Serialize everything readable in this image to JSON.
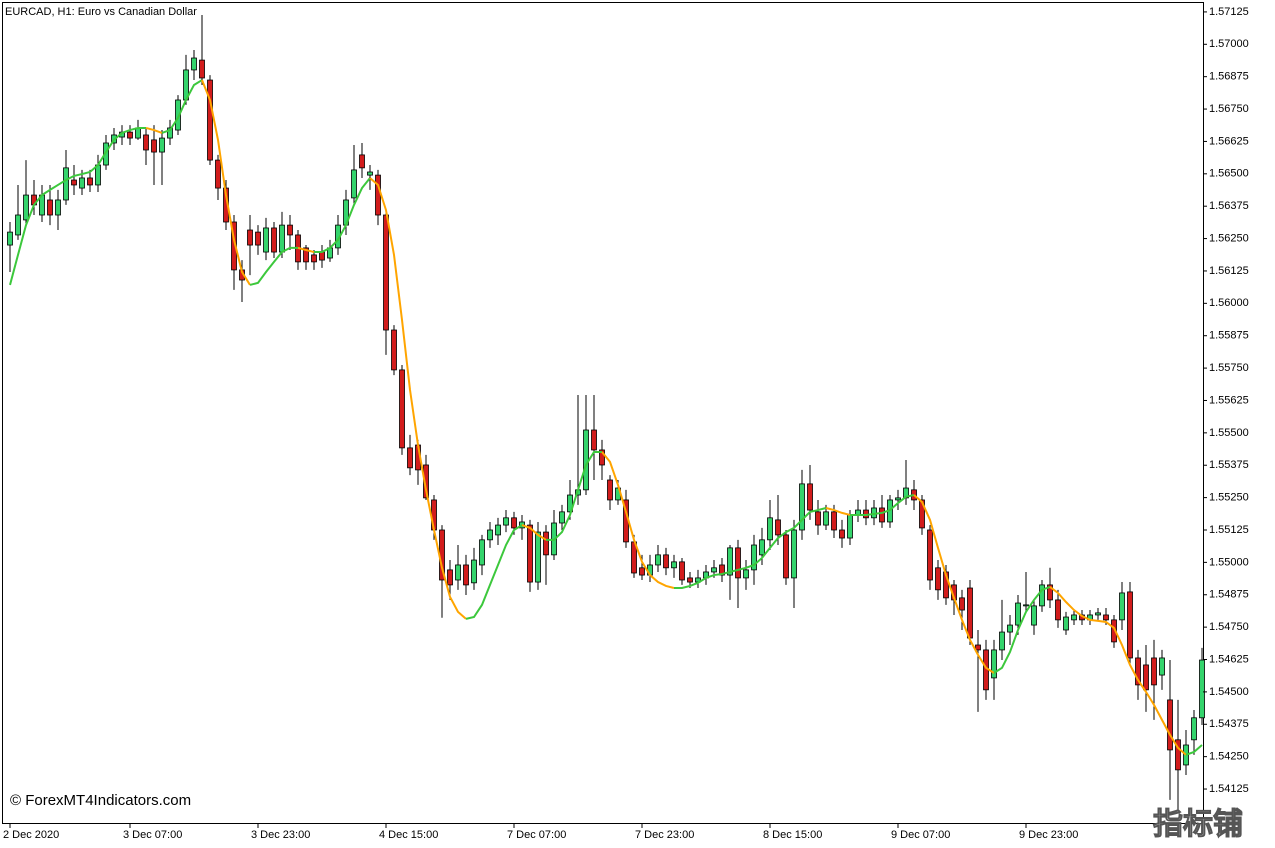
{
  "chart_data": {
    "type": "candlestick",
    "title": "EURCAD, H1:  Euro vs Canadian Dollar",
    "watermark": "© ForexMT4Indicators.com",
    "logo": "指标铺",
    "up_color": "#34d46c",
    "down_color": "#d21c1c",
    "ylim": [
      1.5399,
      1.57171
    ],
    "yticks": [
      1.57125,
      {
        "value": 1.57,
        "label": "1.57000"
      },
      1.56875,
      {
        "value": 1.5675,
        "label": "1.56750"
      },
      1.56625,
      {
        "value": 1.565,
        "label": "1.56500"
      },
      1.56375,
      {
        "value": 1.5625,
        "label": "1.56250"
      },
      1.56125,
      {
        "value": 1.56,
        "label": "1.56000"
      },
      1.55875,
      {
        "value": 1.5575,
        "label": "1.55750"
      },
      1.55625,
      {
        "value": 1.555,
        "label": "1.55500"
      },
      1.55375,
      {
        "value": 1.5525,
        "label": "1.55250"
      },
      1.55125,
      {
        "value": 1.55,
        "label": "1.55000"
      },
      1.54875,
      {
        "value": 1.5475,
        "label": "1.54750"
      },
      1.54625,
      {
        "value": 1.545,
        "label": "1.54500"
      },
      1.54375,
      {
        "value": 1.5425,
        "label": "1.54250"
      },
      1.54125
    ],
    "categories": [
      "2 Dec 2020",
      null,
      null,
      null,
      null,
      null,
      null,
      null,
      null,
      null,
      null,
      null,
      null,
      null,
      null,
      "3 Dec 07:00",
      null,
      null,
      null,
      null,
      null,
      null,
      null,
      null,
      null,
      null,
      null,
      null,
      null,
      null,
      null,
      "3 Dec 23:00",
      null,
      null,
      null,
      null,
      null,
      null,
      null,
      null,
      null,
      null,
      null,
      null,
      null,
      null,
      null,
      "4 Dec 15:00",
      null,
      null,
      null,
      null,
      null,
      null,
      null,
      null,
      null,
      null,
      null,
      null,
      null,
      null,
      null,
      "7 Dec 07:00",
      null,
      null,
      null,
      null,
      null,
      null,
      null,
      null,
      null,
      null,
      null,
      null,
      null,
      null,
      null,
      "7 Dec 23:00",
      null,
      null,
      null,
      null,
      null,
      null,
      null,
      null,
      null,
      null,
      null,
      null,
      null,
      null,
      null,
      "8 Dec 15:00",
      null,
      null,
      null,
      null,
      null,
      null,
      null,
      null,
      null,
      null,
      null,
      null,
      null,
      null,
      null,
      "9 Dec 07:00",
      null,
      null,
      null,
      null,
      null,
      null,
      null,
      null,
      null,
      null,
      null,
      null,
      null,
      null,
      null,
      "9 Dec 23:00",
      null,
      null,
      null,
      null,
      null,
      null,
      null,
      null,
      null,
      null,
      null,
      null,
      null,
      null,
      null,
      null,
      null,
      null,
      null,
      null,
      null,
      null
    ],
    "open": [
      1.56225,
      1.56264,
      1.56322,
      1.56418,
      1.56341,
      1.56399,
      1.56341,
      1.56399,
      1.56476,
      1.56445,
      1.56484,
      1.56457,
      1.56534,
      1.56619,
      1.56642,
      1.56661,
      1.56638,
      1.5665,
      1.56631,
      1.56584,
      1.56638,
      1.56669,
      1.56785,
      1.56901,
      1.56939,
      1.56862,
      1.56553,
      1.56445,
      1.56314,
      1.56129,
      1.56283,
      1.56275,
      1.56198,
      1.56291,
      1.56198,
      1.56302,
      1.56264,
      1.56214,
      1.56187,
      1.56198,
      1.56175,
      1.56214,
      1.56302,
      1.56407,
      1.56573,
      1.56495,
      1.56495,
      1.56341,
      1.55897,
      1.55743,
      1.55442,
      1.55453,
      1.55376,
      1.55241,
      1.55125,
      1.54971,
      1.54932,
      1.5499,
      1.54921,
      1.5499,
      1.55087,
      1.55106,
      1.55144,
      1.55172,
      1.55133,
      1.55144,
      1.54924,
      1.55117,
      1.55029,
      1.55152,
      1.55195,
      1.5526,
      1.5528,
      1.55511,
      1.55434,
      1.55318,
      1.55241,
      1.55241,
      1.55079,
      1.54979,
      1.54951,
      1.5499,
      1.55029,
      1.54979,
      1.55002,
      1.5494,
      1.54924,
      1.5494,
      1.54963,
      1.5499,
      1.54951,
      1.55056,
      1.5494,
      1.54971,
      1.55029,
      1.55087,
      1.55164,
      1.55106,
      1.5494,
      1.55125,
      1.55303,
      1.55195,
      1.55144,
      1.55195,
      1.55125,
      1.55094,
      1.55183,
      1.55202,
      1.55172,
      1.5521,
      1.55156,
      1.55241,
      1.55249,
      1.5528,
      1.55241,
      1.55125,
      1.54979,
      1.54963,
      1.54913,
      1.54863,
      1.54901,
      1.54681,
      1.54662,
      1.54554,
      1.54662,
      1.54731,
      1.54758,
      1.54832,
      1.54758,
      1.54832,
      1.54913,
      1.54855,
      1.54739,
      1.54778,
      1.54797,
      1.54778,
      1.54797,
      1.54797,
      1.54778,
      1.54778,
      1.54886,
      1.54631,
      1.54604,
      1.54631,
      1.54565,
      1.54469,
      1.54315,
      1.54218,
      1.54315,
      1.544
    ],
    "high": [
      1.56314,
      1.56457,
      1.56553,
      1.56476,
      1.56457,
      1.56457,
      1.56438,
      1.56592,
      1.56534,
      1.56515,
      1.56515,
      1.56573,
      1.5665,
      1.56677,
      1.56688,
      1.56688,
      1.56708,
      1.56677,
      1.56688,
      1.56669,
      1.56708,
      1.56804,
      1.56959,
      1.56978,
      1.57113,
      1.56881,
      1.56573,
      1.56476,
      1.56341,
      1.56167,
      1.56341,
      1.56302,
      1.5633,
      1.56314,
      1.56353,
      1.56341,
      1.56283,
      1.56225,
      1.56206,
      1.56225,
      1.56245,
      1.56341,
      1.56438,
      1.56611,
      1.56619,
      1.56534,
      1.56515,
      1.5636,
      1.55916,
      1.55762,
      1.55492,
      1.55473,
      1.55415,
      1.5526,
      1.55144,
      1.55009,
      1.55067,
      1.55029,
      1.55056,
      1.55106,
      1.55156,
      1.55172,
      1.55202,
      1.55195,
      1.55183,
      1.55164,
      1.55156,
      1.55144,
      1.55202,
      1.55222,
      1.55318,
      1.55646,
      1.55646,
      1.55646,
      1.55473,
      1.55337,
      1.55318,
      1.5528,
      1.55106,
      1.55029,
      1.55029,
      1.55067,
      1.55056,
      1.55029,
      1.55017,
      1.54963,
      1.54971,
      1.5499,
      1.55009,
      1.55017,
      1.55067,
      1.55087,
      1.55009,
      1.55106,
      1.55133,
      1.55241,
      1.5526,
      1.55125,
      1.55164,
      1.55357,
      1.55376,
      1.55241,
      1.55222,
      1.55222,
      1.55164,
      1.55202,
      1.55241,
      1.55241,
      1.55241,
      1.5526,
      1.5526,
      1.5528,
      1.55395,
      1.55318,
      1.5526,
      1.55144,
      1.55009,
      1.5499,
      1.54932,
      1.54894,
      1.54932,
      1.54739,
      1.54701,
      1.54701,
      1.54855,
      1.54797,
      1.54874,
      1.54963,
      1.54855,
      1.54932,
      1.54979,
      1.54894,
      1.54809,
      1.54816,
      1.54816,
      1.54816,
      1.54824,
      1.54824,
      1.54797,
      1.54924,
      1.54924,
      1.54662,
      1.54681,
      1.54701,
      1.54662,
      1.54623,
      1.54469,
      1.54353,
      1.5443,
      1.5467
    ],
    "low": [
      1.56121,
      1.56245,
      1.56302,
      1.56341,
      1.56314,
      1.56302,
      1.56283,
      1.5638,
      1.56418,
      1.56418,
      1.5643,
      1.5643,
      1.56515,
      1.56592,
      1.56611,
      1.56611,
      1.56631,
      1.56534,
      1.56457,
      1.56457,
      1.56611,
      1.5665,
      1.56766,
      1.56862,
      1.56843,
      1.56534,
      1.56399,
      1.56283,
      1.56052,
      1.56005,
      1.56109,
      1.56187,
      1.56167,
      1.56175,
      1.56175,
      1.56206,
      1.56129,
      1.56129,
      1.56129,
      1.56137,
      1.5616,
      1.56187,
      1.56264,
      1.5638,
      1.56484,
      1.56438,
      1.56302,
      1.55801,
      1.55723,
      1.55415,
      1.55337,
      1.55299,
      1.55241,
      1.55087,
      1.54786,
      1.54855,
      1.54894,
      1.54874,
      1.54894,
      1.54951,
      1.55056,
      1.55067,
      1.55117,
      1.55106,
      1.55087,
      1.54886,
      1.54894,
      1.54913,
      1.55009,
      1.55125,
      1.55164,
      1.55222,
      1.5526,
      1.55318,
      1.55318,
      1.55202,
      1.55222,
      1.55056,
      1.5494,
      1.54932,
      1.54924,
      1.54963,
      1.54951,
      1.5494,
      1.54913,
      1.54901,
      1.54901,
      1.54913,
      1.5494,
      1.54924,
      1.54855,
      1.54824,
      1.54894,
      1.54913,
      1.5499,
      1.55048,
      1.55067,
      1.54913,
      1.54824,
      1.55087,
      1.55164,
      1.55106,
      1.55125,
      1.55094,
      1.55056,
      1.55067,
      1.55156,
      1.55144,
      1.55144,
      1.55133,
      1.55133,
      1.55202,
      1.55222,
      1.55202,
      1.55106,
      1.54894,
      1.54855,
      1.54836,
      1.54797,
      1.54739,
      1.54681,
      1.54423,
      1.54469,
      1.54469,
      1.54623,
      1.54681,
      1.5472,
      1.54809,
      1.5472,
      1.54809,
      1.54824,
      1.54747,
      1.5472,
      1.54758,
      1.54758,
      1.54758,
      1.54778,
      1.54758,
      1.5467,
      1.54739,
      1.54604,
      1.54469,
      1.54423,
      1.54392,
      1.54508,
      1.54083,
      1.54044,
      1.54179,
      1.54257,
      1.54372
    ],
    "close": [
      1.56275,
      1.56341,
      1.56418,
      1.5638,
      1.56418,
      1.56341,
      1.56399,
      1.56523,
      1.56457,
      1.56484,
      1.56457,
      1.56534,
      1.56619,
      1.5665,
      1.56661,
      1.56638,
      1.56677,
      1.56592,
      1.56584,
      1.56638,
      1.56677,
      1.56785,
      1.56901,
      1.56947,
      1.5687,
      1.56553,
      1.56445,
      1.56314,
      1.56129,
      1.5609,
      1.56225,
      1.56225,
      1.56291,
      1.56198,
      1.56302,
      1.56264,
      1.5616,
      1.5616,
      1.5616,
      1.56167,
      1.56214,
      1.56302,
      1.56399,
      1.56515,
      1.56523,
      1.56507,
      1.56341,
      1.55897,
      1.55743,
      1.55442,
      1.55365,
      1.55357,
      1.55249,
      1.55125,
      1.54932,
      1.54913,
      1.5499,
      1.54913,
      1.55009,
      1.55087,
      1.55125,
      1.55144,
      1.55172,
      1.55133,
      1.55156,
      1.54924,
      1.55117,
      1.55029,
      1.55152,
      1.55195,
      1.5526,
      1.5528,
      1.55511,
      1.55434,
      1.55376,
      1.55241,
      1.55287,
      1.55079,
      1.54959,
      1.54951,
      1.5499,
      1.55029,
      1.54979,
      1.55002,
      1.54932,
      1.54924,
      1.5494,
      1.54963,
      1.54979,
      1.54951,
      1.55056,
      1.5494,
      1.54971,
      1.55067,
      1.55087,
      1.55172,
      1.55106,
      1.5494,
      1.55125,
      1.55303,
      1.55202,
      1.55144,
      1.55195,
      1.55125,
      1.55094,
      1.55183,
      1.55202,
      1.55172,
      1.5521,
      1.55156,
      1.55241,
      1.55249,
      1.55287,
      1.55241,
      1.55133,
      1.54932,
      1.54894,
      1.54863,
      1.54855,
      1.54816,
      1.54708,
      1.54662,
      1.54508,
      1.54662,
      1.54731,
      1.54758,
      1.54843,
      1.54836,
      1.54832,
      1.54913,
      1.54855,
      1.54778,
      1.54789,
      1.54797,
      1.54778,
      1.54797,
      1.54805,
      1.54778,
      1.54693,
      1.54882,
      1.54631,
      1.54527,
      1.54508,
      1.54527,
      1.54631,
      1.54276,
      1.54199,
      1.54295,
      1.544,
      1.54623
    ],
    "overlay": {
      "up_color": "#3cc83c",
      "down_color": "#ffa500",
      "values": [
        1.56071,
        1.56187,
        1.56302,
        1.5638,
        1.56418,
        1.56438,
        1.56457,
        1.56476,
        1.56492,
        1.56499,
        1.56507,
        1.56534,
        1.56584,
        1.56631,
        1.56658,
        1.56669,
        1.56677,
        1.56677,
        1.56669,
        1.56658,
        1.56669,
        1.56716,
        1.56785,
        1.56843,
        1.56862,
        1.56785,
        1.56631,
        1.56418,
        1.56245,
        1.56121,
        1.56071,
        1.56079,
        1.56121,
        1.5616,
        1.56198,
        1.56214,
        1.56214,
        1.56206,
        1.56198,
        1.56198,
        1.56214,
        1.56245,
        1.56302,
        1.5638,
        1.56445,
        1.56484,
        1.56457,
        1.5636,
        1.56187,
        1.55936,
        1.55666,
        1.55453,
        1.5528,
        1.55125,
        1.54979,
        1.54867,
        1.54809,
        1.54782,
        1.54789,
        1.54836,
        1.54913,
        1.5499,
        1.55067,
        1.55125,
        1.55144,
        1.55133,
        1.55106,
        1.55087,
        1.55087,
        1.55117,
        1.55183,
        1.5528,
        1.55376,
        1.55426,
        1.55426,
        1.55388,
        1.55299,
        1.55195,
        1.55087,
        1.55002,
        1.54951,
        1.54924,
        1.54909,
        1.54901,
        1.54901,
        1.54909,
        1.54921,
        1.5494,
        1.54951,
        1.54955,
        1.54963,
        1.54971,
        1.54979,
        1.5499,
        1.55017,
        1.55056,
        1.55094,
        1.55117,
        1.55133,
        1.55164,
        1.55195,
        1.55202,
        1.5521,
        1.55202,
        1.55191,
        1.55183,
        1.55183,
        1.55183,
        1.55187,
        1.55191,
        1.55202,
        1.55229,
        1.55253,
        1.5526,
        1.55233,
        1.55164,
        1.55056,
        1.54951,
        1.54863,
        1.54778,
        1.54701,
        1.54643,
        1.54593,
        1.54573,
        1.54593,
        1.54654,
        1.54739,
        1.54809,
        1.54855,
        1.54894,
        1.54905,
        1.54882,
        1.54847,
        1.54816,
        1.54793,
        1.54778,
        1.54774,
        1.5477,
        1.54747,
        1.54681,
        1.54604,
        1.54546,
        1.545,
        1.5445,
        1.54392,
        1.54334,
        1.54284,
        1.54257,
        1.54268,
        1.54295
      ]
    }
  }
}
